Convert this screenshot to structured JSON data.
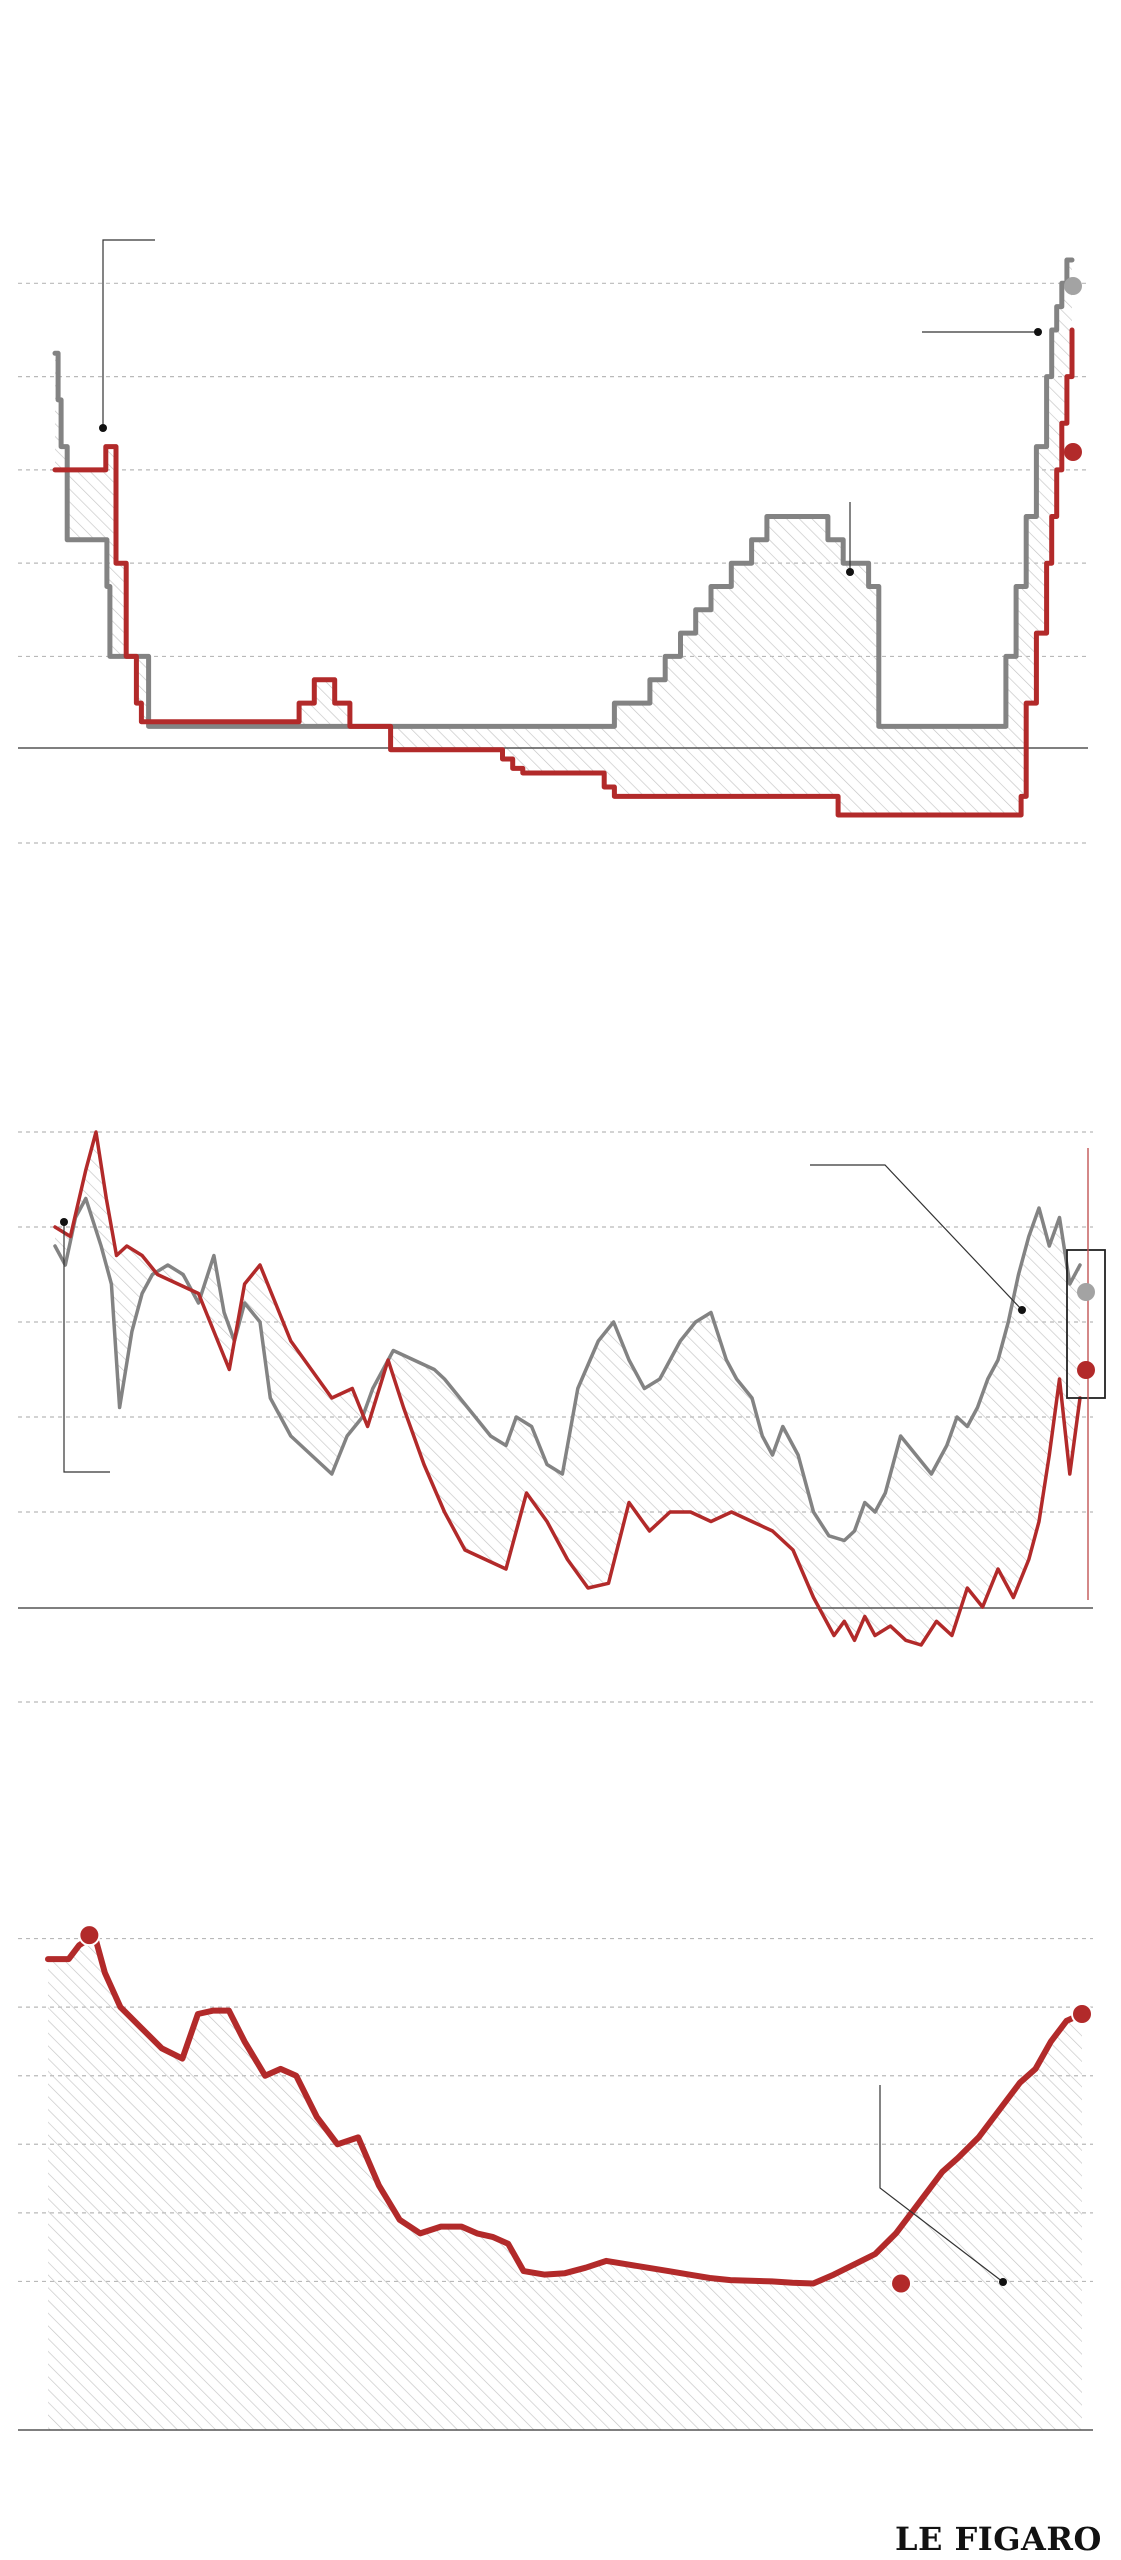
{
  "colors": {
    "red": "#b22a2a",
    "gray": "#838383",
    "hatch": "#c4c4c4",
    "grid": "#b9b9b9",
    "text": "#111111"
  },
  "logo": {
    "text": "LE FIGARO"
  },
  "chart_data": [
    {
      "type": "line",
      "style": "step",
      "grid": true,
      "fill_between": "hatched",
      "series": [
        {
          "color": "gray",
          "x": [
            0.0,
            0.003,
            0.006,
            0.012,
            0.048,
            0.051,
            0.054,
            0.085,
            0.092,
            0.098,
            0.24,
            0.3,
            0.4,
            0.48,
            0.55,
            0.57,
            0.585,
            0.6,
            0.615,
            0.63,
            0.645,
            0.665,
            0.685,
            0.7,
            0.73,
            0.76,
            0.775,
            0.79,
            0.8,
            0.81,
            0.925,
            0.935,
            0.945,
            0.955,
            0.965,
            0.975,
            0.98,
            0.985,
            0.99,
            0.995,
            1.0
          ],
          "y": [
            4.25,
            3.75,
            3.25,
            2.25,
            2.25,
            1.75,
            1.0,
            1.0,
            0.25,
            0.25,
            0.25,
            0.25,
            0.25,
            0.25,
            0.5,
            0.5,
            0.75,
            1.0,
            1.25,
            1.5,
            1.75,
            2.0,
            2.25,
            2.5,
            2.5,
            2.25,
            2.0,
            2.0,
            1.75,
            0.25,
            0.25,
            1.0,
            1.75,
            2.5,
            3.25,
            4.0,
            4.5,
            4.75,
            5.0,
            5.25,
            5.25
          ]
        },
        {
          "color": "red",
          "x": [
            0.0,
            0.03,
            0.05,
            0.06,
            0.07,
            0.08,
            0.085,
            0.24,
            0.255,
            0.275,
            0.29,
            0.33,
            0.44,
            0.45,
            0.46,
            0.54,
            0.55,
            0.77,
            0.95,
            0.955,
            0.965,
            0.975,
            0.98,
            0.985,
            0.99,
            0.995,
            1.0
          ],
          "y": [
            3.0,
            3.0,
            3.25,
            2.0,
            1.0,
            0.5,
            0.3,
            0.5,
            0.75,
            0.5,
            0.25,
            -0.0,
            -0.1,
            -0.2,
            -0.25,
            -0.4,
            -0.5,
            -0.7,
            -0.5,
            0.5,
            1.25,
            2.0,
            2.5,
            3.0,
            3.5,
            4.0,
            4.5
          ]
        }
      ],
      "ylim": [
        -1,
        5.25
      ],
      "yticks": [
        -1,
        0,
        1,
        2,
        3,
        4,
        5
      ]
    },
    {
      "type": "line",
      "grid": true,
      "fill_between": "hatched",
      "series": [
        {
          "color": "gray",
          "x": [
            0.0,
            0.01,
            0.02,
            0.03,
            0.045,
            0.055,
            0.063,
            0.075,
            0.085,
            0.095,
            0.11,
            0.125,
            0.14,
            0.155,
            0.165,
            0.175,
            0.185,
            0.2,
            0.21,
            0.23,
            0.25,
            0.27,
            0.285,
            0.3,
            0.31,
            0.33,
            0.35,
            0.37,
            0.38,
            0.395,
            0.41,
            0.425,
            0.44,
            0.45,
            0.465,
            0.48,
            0.495,
            0.51,
            0.53,
            0.545,
            0.56,
            0.575,
            0.59,
            0.61,
            0.625,
            0.64,
            0.655,
            0.665,
            0.68,
            0.69,
            0.7,
            0.71,
            0.725,
            0.74,
            0.755,
            0.77,
            0.78,
            0.79,
            0.8,
            0.81,
            0.815,
            0.825,
            0.84,
            0.855,
            0.87,
            0.88,
            0.89,
            0.9,
            0.91,
            0.92,
            0.93,
            0.94,
            0.95,
            0.96,
            0.97,
            0.98,
            0.99,
            1.0
          ],
          "y": [
            3.8,
            3.6,
            4.1,
            4.3,
            3.8,
            3.4,
            2.1,
            2.9,
            3.3,
            3.5,
            3.6,
            3.5,
            3.2,
            3.7,
            3.1,
            2.8,
            3.2,
            3.0,
            2.2,
            1.8,
            1.6,
            1.4,
            1.8,
            2.0,
            2.3,
            2.7,
            2.6,
            2.5,
            2.4,
            2.2,
            2.0,
            1.8,
            1.7,
            2.0,
            1.9,
            1.5,
            1.4,
            2.3,
            2.8,
            3.0,
            2.6,
            2.3,
            2.4,
            2.8,
            3.0,
            3.1,
            2.6,
            2.4,
            2.2,
            1.8,
            1.6,
            1.9,
            1.6,
            1.0,
            0.75,
            0.7,
            0.8,
            1.1,
            1.0,
            1.2,
            1.4,
            1.8,
            1.6,
            1.4,
            1.7,
            2.0,
            1.9,
            2.1,
            2.4,
            2.6,
            3.0,
            3.5,
            3.9,
            4.2,
            3.8,
            4.1,
            3.4,
            3.6
          ]
        },
        {
          "color": "red",
          "x": [
            0.0,
            0.015,
            0.03,
            0.04,
            0.05,
            0.06,
            0.07,
            0.085,
            0.1,
            0.12,
            0.14,
            0.155,
            0.17,
            0.185,
            0.2,
            0.215,
            0.23,
            0.25,
            0.27,
            0.29,
            0.305,
            0.325,
            0.34,
            0.36,
            0.38,
            0.4,
            0.42,
            0.44,
            0.46,
            0.48,
            0.5,
            0.52,
            0.54,
            0.56,
            0.58,
            0.6,
            0.62,
            0.64,
            0.66,
            0.68,
            0.7,
            0.72,
            0.74,
            0.76,
            0.77,
            0.78,
            0.79,
            0.8,
            0.815,
            0.83,
            0.845,
            0.86,
            0.875,
            0.89,
            0.905,
            0.92,
            0.935,
            0.95,
            0.96,
            0.97,
            0.98,
            0.99,
            1.0
          ],
          "y": [
            4.0,
            3.9,
            4.6,
            5.0,
            4.3,
            3.7,
            3.8,
            3.7,
            3.5,
            3.4,
            3.3,
            2.9,
            2.5,
            3.4,
            3.6,
            3.2,
            2.8,
            2.5,
            2.2,
            2.3,
            1.9,
            2.6,
            2.1,
            1.5,
            1.0,
            0.6,
            0.5,
            0.4,
            1.2,
            0.9,
            0.5,
            0.2,
            0.25,
            1.1,
            0.8,
            1.0,
            1.0,
            0.9,
            1.0,
            0.9,
            0.8,
            0.6,
            0.1,
            -0.3,
            -0.15,
            -0.35,
            -0.1,
            -0.3,
            -0.2,
            -0.35,
            -0.4,
            -0.15,
            -0.3,
            0.2,
            0.0,
            0.4,
            0.1,
            0.5,
            0.9,
            1.6,
            2.4,
            1.4,
            2.2
          ]
        }
      ],
      "ylim": [
        -1,
        5
      ],
      "yticks": [
        -1,
        0,
        1,
        2,
        3,
        4,
        5
      ]
    },
    {
      "type": "area",
      "grid": true,
      "fill": "hatched",
      "series": [
        {
          "color": "red",
          "x": [
            0.0,
            0.02,
            0.03,
            0.045,
            0.055,
            0.07,
            0.09,
            0.11,
            0.13,
            0.145,
            0.16,
            0.175,
            0.19,
            0.21,
            0.225,
            0.24,
            0.26,
            0.28,
            0.3,
            0.32,
            0.34,
            0.36,
            0.38,
            0.4,
            0.415,
            0.43,
            0.445,
            0.46,
            0.48,
            0.5,
            0.52,
            0.54,
            0.56,
            0.58,
            0.6,
            0.62,
            0.64,
            0.66,
            0.68,
            0.7,
            0.72,
            0.74,
            0.76,
            0.78,
            0.8,
            0.82,
            0.835,
            0.85,
            0.865,
            0.88,
            0.9,
            0.92,
            0.94,
            0.955,
            0.97,
            0.985,
            1.0
          ],
          "y": [
            4.7,
            4.7,
            4.9,
            5.05,
            4.5,
            4.0,
            3.7,
            3.4,
            3.25,
            3.9,
            3.95,
            3.95,
            3.5,
            3.0,
            3.1,
            3.0,
            2.4,
            2.0,
            2.1,
            1.4,
            0.9,
            0.7,
            0.8,
            0.8,
            0.7,
            0.65,
            0.55,
            0.15,
            0.1,
            0.12,
            0.2,
            0.3,
            0.25,
            0.2,
            0.15,
            0.1,
            0.05,
            0.02,
            0.01,
            0.0,
            -0.02,
            -0.03,
            0.1,
            0.25,
            0.4,
            0.7,
            1.0,
            1.3,
            1.6,
            1.8,
            2.1,
            2.5,
            2.9,
            3.1,
            3.5,
            3.8,
            3.9
          ]
        }
      ],
      "markers": [
        {
          "x": 0.04,
          "y": 5.05
        },
        {
          "x": 0.825,
          "y": -0.03
        },
        {
          "x": 1.0,
          "y": 3.9
        }
      ],
      "ylim": [
        -1,
        6
      ],
      "yticks": [
        0,
        1,
        2,
        3,
        4,
        5
      ]
    }
  ]
}
